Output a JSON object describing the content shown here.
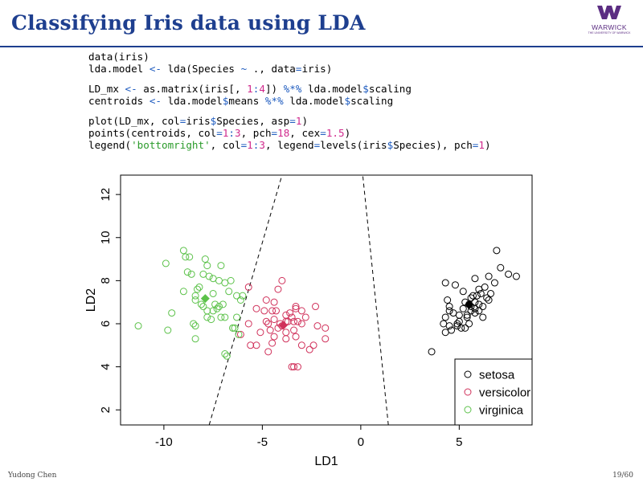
{
  "slide": {
    "title": "Classifying Iris data using LDA",
    "logo_text": "WARWICK",
    "logo_subtext": "THE UNIVERSITY OF WARWICK",
    "author": "Yudong Chen",
    "page": "19/60"
  },
  "colors": {
    "title": "#1e3f8f",
    "setosa": "#000000",
    "versicolor": "#d0305a",
    "virginica": "#5cc24a",
    "code_operator": "#1e5bbf",
    "code_number": "#d0288c",
    "code_string": "#2b9b2b"
  },
  "code": [
    [
      {
        "t": "data(iris)",
        "c": ""
      }
    ],
    [
      {
        "t": "lda.model ",
        "c": ""
      },
      {
        "t": "<-",
        "c": "op"
      },
      {
        "t": " lda(Species ",
        "c": ""
      },
      {
        "t": "~",
        "c": "op"
      },
      {
        "t": " ., data",
        "c": ""
      },
      {
        "t": "=",
        "c": "op"
      },
      {
        "t": "iris)",
        "c": ""
      }
    ],
    [],
    [
      {
        "t": "LD_mx ",
        "c": ""
      },
      {
        "t": "<-",
        "c": "op"
      },
      {
        "t": " as.matrix(iris[, ",
        "c": ""
      },
      {
        "t": "1",
        "c": "num"
      },
      {
        "t": ":",
        "c": "op"
      },
      {
        "t": "4",
        "c": "num"
      },
      {
        "t": "]) ",
        "c": ""
      },
      {
        "t": "%*%",
        "c": "op"
      },
      {
        "t": " lda.model",
        "c": ""
      },
      {
        "t": "$",
        "c": "op"
      },
      {
        "t": "scaling",
        "c": ""
      }
    ],
    [
      {
        "t": "centroids ",
        "c": ""
      },
      {
        "t": "<-",
        "c": "op"
      },
      {
        "t": " lda.model",
        "c": ""
      },
      {
        "t": "$",
        "c": "op"
      },
      {
        "t": "means ",
        "c": ""
      },
      {
        "t": "%*%",
        "c": "op"
      },
      {
        "t": " lda.model",
        "c": ""
      },
      {
        "t": "$",
        "c": "op"
      },
      {
        "t": "scaling",
        "c": ""
      }
    ],
    [],
    [
      {
        "t": "plot(LD_mx, col",
        "c": ""
      },
      {
        "t": "=",
        "c": "op"
      },
      {
        "t": "iris",
        "c": ""
      },
      {
        "t": "$",
        "c": "op"
      },
      {
        "t": "Species, asp",
        "c": ""
      },
      {
        "t": "=",
        "c": "op"
      },
      {
        "t": "1",
        "c": "num"
      },
      {
        "t": ")",
        "c": ""
      }
    ],
    [
      {
        "t": "points(centroids, col",
        "c": ""
      },
      {
        "t": "=",
        "c": "op"
      },
      {
        "t": "1",
        "c": "num"
      },
      {
        "t": ":",
        "c": "op"
      },
      {
        "t": "3",
        "c": "num"
      },
      {
        "t": ", pch",
        "c": ""
      },
      {
        "t": "=",
        "c": "op"
      },
      {
        "t": "18",
        "c": "num"
      },
      {
        "t": ", cex",
        "c": ""
      },
      {
        "t": "=",
        "c": "op"
      },
      {
        "t": "1.5",
        "c": "num"
      },
      {
        "t": ")",
        "c": ""
      }
    ],
    [
      {
        "t": "legend(",
        "c": ""
      },
      {
        "t": "'bottomright'",
        "c": "str"
      },
      {
        "t": ", col",
        "c": ""
      },
      {
        "t": "=",
        "c": "op"
      },
      {
        "t": "1",
        "c": "num"
      },
      {
        "t": ":",
        "c": "op"
      },
      {
        "t": "3",
        "c": "num"
      },
      {
        "t": ", legend",
        "c": ""
      },
      {
        "t": "=",
        "c": "op"
      },
      {
        "t": "levels(iris",
        "c": ""
      },
      {
        "t": "$",
        "c": "op"
      },
      {
        "t": "Species), pch",
        "c": ""
      },
      {
        "t": "=",
        "c": "op"
      },
      {
        "t": "1",
        "c": "num"
      },
      {
        "t": ")",
        "c": ""
      }
    ]
  ],
  "chart_data": {
    "type": "scatter",
    "xlabel": "LD1",
    "ylabel": "LD2",
    "xlim": [
      -12.2,
      8.7
    ],
    "ylim": [
      1.3,
      12.9
    ],
    "xticks": [
      -10,
      -5,
      0,
      5
    ],
    "yticks": [
      2,
      4,
      6,
      8,
      10,
      12
    ],
    "legend_position": "bottomright",
    "legend": [
      "setosa",
      "versicolor",
      "virginica"
    ],
    "series": [
      {
        "name": "setosa",
        "points": [
          [
            3.6,
            4.7
          ],
          [
            4.3,
            5.6
          ],
          [
            4.5,
            5.9
          ],
          [
            4.2,
            6.0
          ],
          [
            4.3,
            6.3
          ],
          [
            4.9,
            5.9
          ],
          [
            4.9,
            6.0
          ],
          [
            5.0,
            6.4
          ],
          [
            4.6,
            5.7
          ],
          [
            5.1,
            5.8
          ],
          [
            5.3,
            5.8
          ],
          [
            4.7,
            6.5
          ],
          [
            5.0,
            6.1
          ],
          [
            5.2,
            6.7
          ],
          [
            5.4,
            6.3
          ],
          [
            5.6,
            6.6
          ],
          [
            5.8,
            6.7
          ],
          [
            5.3,
            7.0
          ],
          [
            5.6,
            7.2
          ],
          [
            5.9,
            7.3
          ],
          [
            6.1,
            7.4
          ],
          [
            6.3,
            7.7
          ],
          [
            5.6,
            6.8
          ],
          [
            6.0,
            6.9
          ],
          [
            5.8,
            7.0
          ],
          [
            6.4,
            7.2
          ],
          [
            6.6,
            7.4
          ],
          [
            6.8,
            7.9
          ],
          [
            7.1,
            8.6
          ],
          [
            7.5,
            8.3
          ],
          [
            6.5,
            8.2
          ],
          [
            6.9,
            9.4
          ],
          [
            4.4,
            7.1
          ],
          [
            5.2,
            7.5
          ],
          [
            5.8,
            8.1
          ],
          [
            4.8,
            7.8
          ],
          [
            4.3,
            7.9
          ],
          [
            6.0,
            7.6
          ],
          [
            5.5,
            6.9
          ],
          [
            5.5,
            6.0
          ],
          [
            6.2,
            6.3
          ],
          [
            6.0,
            6.6
          ],
          [
            5.8,
            6.5
          ],
          [
            4.5,
            6.8
          ],
          [
            6.5,
            7.1
          ],
          [
            4.5,
            6.6
          ],
          [
            5.7,
            7.3
          ],
          [
            6.2,
            6.8
          ],
          [
            7.9,
            8.2
          ],
          [
            5.4,
            6.4
          ]
        ],
        "centroid": [
          5.5,
          6.88
        ]
      },
      {
        "name": "versicolor",
        "points": [
          [
            -3.4,
            4.0
          ],
          [
            -3.5,
            4.0
          ],
          [
            -2.6,
            4.8
          ],
          [
            -2.4,
            5.0
          ],
          [
            -4.5,
            5.1
          ],
          [
            -4.7,
            4.7
          ],
          [
            -3.8,
            5.3
          ],
          [
            -3.3,
            5.4
          ],
          [
            -5.6,
            5.0
          ],
          [
            -3.0,
            5.0
          ],
          [
            -1.8,
            5.3
          ],
          [
            -1.8,
            5.8
          ],
          [
            -2.2,
            5.9
          ],
          [
            -2.8,
            6.3
          ],
          [
            -3.4,
            5.7
          ],
          [
            -2.3,
            6.8
          ],
          [
            -3.3,
            6.7
          ],
          [
            -3.6,
            6.5
          ],
          [
            -4.0,
            5.9
          ],
          [
            -4.6,
            5.7
          ],
          [
            -4.4,
            5.4
          ],
          [
            -3.8,
            5.6
          ],
          [
            -3.5,
            6.3
          ],
          [
            -3.8,
            6.4
          ],
          [
            -4.3,
            6.6
          ],
          [
            -4.7,
            6.0
          ],
          [
            -5.1,
            5.6
          ],
          [
            -6.1,
            5.5
          ],
          [
            -5.7,
            6.0
          ],
          [
            -4.4,
            7.0
          ],
          [
            -4.2,
            7.6
          ],
          [
            -4.0,
            8.0
          ],
          [
            -4.8,
            7.1
          ],
          [
            -4.9,
            6.6
          ],
          [
            -5.3,
            6.7
          ],
          [
            -3.2,
            6.1
          ],
          [
            -3.3,
            6.8
          ],
          [
            -3.8,
            6.1
          ],
          [
            -3.4,
            6.1
          ],
          [
            -3.2,
            4.0
          ],
          [
            -4.1,
            6.0
          ],
          [
            -4.4,
            6.2
          ],
          [
            -3.0,
            6.0
          ],
          [
            -3.7,
            6.1
          ],
          [
            -5.7,
            7.7
          ],
          [
            -4.5,
            6.6
          ],
          [
            -4.2,
            5.8
          ],
          [
            -5.3,
            5.0
          ],
          [
            -3.0,
            6.6
          ],
          [
            -4.8,
            6.1
          ]
        ],
        "centroid": [
          -3.93,
          5.93
        ]
      },
      {
        "name": "virginica",
        "points": [
          [
            -11.3,
            5.9
          ],
          [
            -9.9,
            8.8
          ],
          [
            -9.8,
            5.7
          ],
          [
            -9.6,
            6.5
          ],
          [
            -9.0,
            7.5
          ],
          [
            -9.0,
            9.4
          ],
          [
            -8.9,
            9.1
          ],
          [
            -8.8,
            8.4
          ],
          [
            -8.6,
            8.3
          ],
          [
            -8.7,
            9.1
          ],
          [
            -8.4,
            5.9
          ],
          [
            -8.4,
            5.3
          ],
          [
            -8.5,
            6.0
          ],
          [
            -8.4,
            7.1
          ],
          [
            -8.0,
            8.3
          ],
          [
            -7.9,
            9.0
          ],
          [
            -7.8,
            8.7
          ],
          [
            -7.7,
            8.2
          ],
          [
            -7.5,
            7.4
          ],
          [
            -7.4,
            6.9
          ],
          [
            -7.2,
            6.8
          ],
          [
            -7.1,
            6.3
          ],
          [
            -6.9,
            6.3
          ],
          [
            -7.0,
            6.9
          ],
          [
            -6.7,
            7.5
          ],
          [
            -6.9,
            7.9
          ],
          [
            -6.6,
            8.0
          ],
          [
            -6.3,
            7.3
          ],
          [
            -6.1,
            7.1
          ],
          [
            -6.0,
            7.3
          ],
          [
            -6.2,
            5.5
          ],
          [
            -6.3,
            6.3
          ],
          [
            -6.5,
            5.8
          ],
          [
            -6.5,
            5.8
          ],
          [
            -6.8,
            4.5
          ],
          [
            -6.9,
            4.6
          ],
          [
            -7.1,
            8.7
          ],
          [
            -7.3,
            6.7
          ],
          [
            -7.6,
            6.2
          ],
          [
            -7.8,
            6.3
          ],
          [
            -7.8,
            6.6
          ],
          [
            -8.0,
            6.8
          ],
          [
            -7.5,
            6.6
          ],
          [
            -6.4,
            5.8
          ],
          [
            -8.4,
            7.3
          ],
          [
            -8.3,
            7.6
          ],
          [
            -8.2,
            7.7
          ],
          [
            -7.5,
            8.1
          ],
          [
            -7.2,
            8.0
          ],
          [
            -8.1,
            6.9
          ]
        ],
        "centroid": [
          -7.9,
          7.17
        ]
      }
    ],
    "decision_boundaries": [
      {
        "from": [
          -7.7,
          1.3
        ],
        "to": [
          -4.0,
          12.9
        ]
      },
      {
        "from": [
          1.4,
          1.3
        ],
        "to": [
          0.1,
          12.9
        ]
      }
    ]
  }
}
